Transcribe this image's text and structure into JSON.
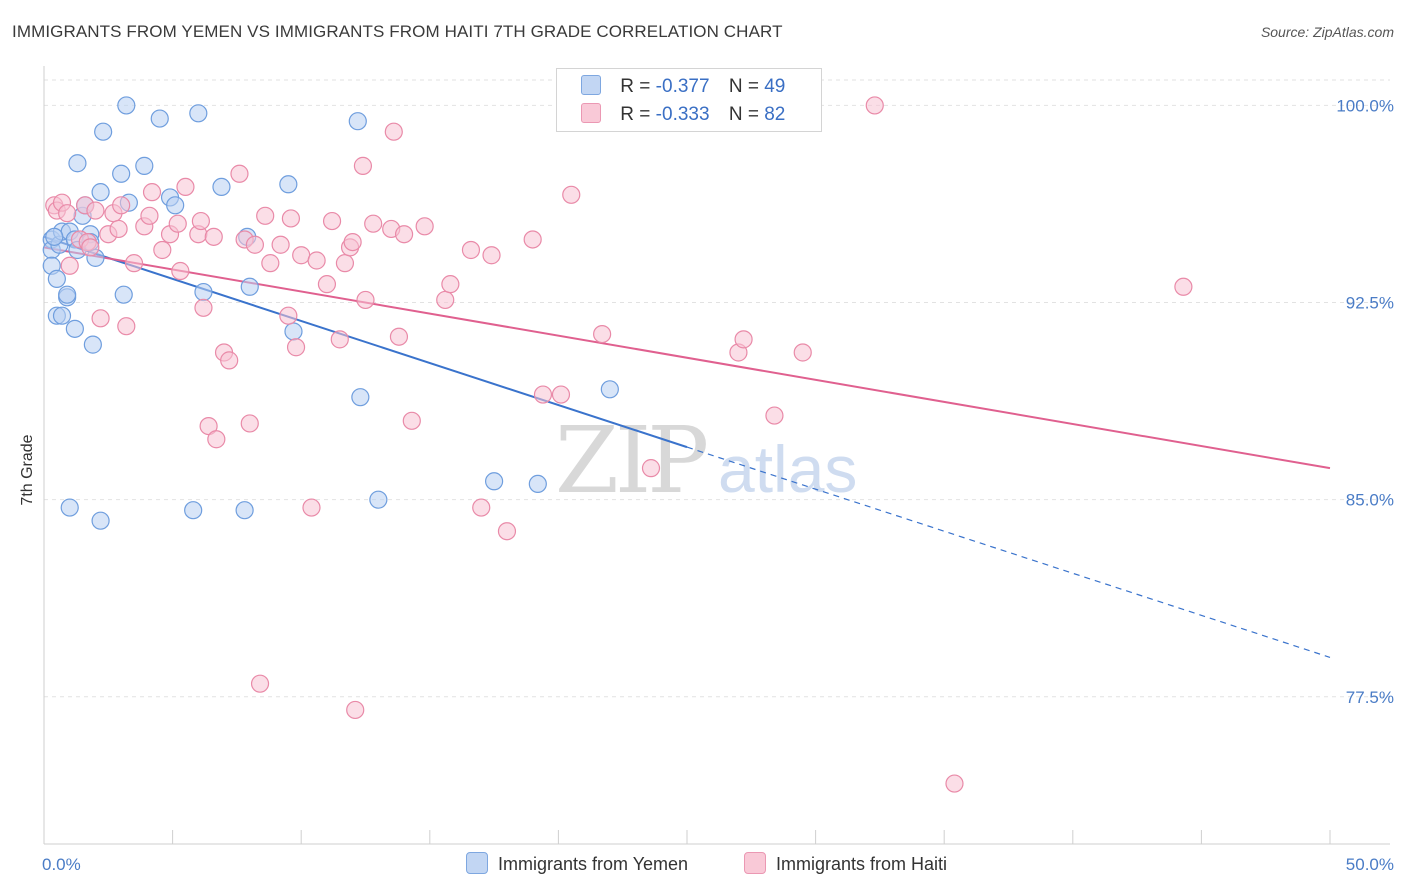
{
  "title": "IMMIGRANTS FROM YEMEN VS IMMIGRANTS FROM HAITI 7TH GRADE CORRELATION CHART",
  "source": "Source: ZipAtlas.com",
  "watermark": {
    "zip": "ZIP",
    "atlas": "atlas"
  },
  "legend": {
    "yemen": {
      "r_label": "R =",
      "r_value": "-0.377",
      "n_label": "N =",
      "n_value": "49"
    },
    "haiti": {
      "r_label": "R =",
      "r_value": "-0.333",
      "n_label": "N =",
      "n_value": "82"
    }
  },
  "bottom_legend": {
    "yemen": "Immigrants from Yemen",
    "haiti": "Immigrants from Haiti"
  },
  "colors": {
    "yemen_fill": "#b8d0f2",
    "yemen_stroke": "#6f9ede",
    "yemen_line": "#3a73cc",
    "haiti_fill": "#f7c2d3",
    "haiti_stroke": "#e98aa8",
    "haiti_line": "#e0608f"
  },
  "chart_data": {
    "type": "scatter",
    "title": "IMMIGRANTS FROM YEMEN VS IMMIGRANTS FROM HAITI 7TH GRADE CORRELATION CHART",
    "xlabel": "",
    "ylabel": "7th Grade",
    "xlim": [
      0,
      50
    ],
    "ylim": [
      71.9,
      101.5
    ],
    "x_tick_labels": [
      "0.0%",
      "50.0%"
    ],
    "y_ticks": [
      77.5,
      85.0,
      92.5,
      100.0
    ],
    "y_tick_labels": [
      "77.5%",
      "85.0%",
      "92.5%",
      "100.0%"
    ],
    "grid": true,
    "series": [
      {
        "name": "Immigrants from Yemen",
        "points": [
          [
            0.3,
            94.9
          ],
          [
            0.3,
            94.5
          ],
          [
            0.3,
            93.9
          ],
          [
            0.5,
            93.4
          ],
          [
            0.5,
            92.0
          ],
          [
            0.6,
            94.7
          ],
          [
            0.7,
            95.2
          ],
          [
            0.7,
            92.0
          ],
          [
            0.9,
            92.7
          ],
          [
            0.9,
            92.8
          ],
          [
            1.0,
            95.2
          ],
          [
            1.2,
            94.9
          ],
          [
            1.2,
            91.5
          ],
          [
            1.3,
            97.8
          ],
          [
            1.3,
            94.5
          ],
          [
            1.5,
            95.8
          ],
          [
            1.6,
            96.2
          ],
          [
            1.8,
            95.1
          ],
          [
            1.8,
            94.8
          ],
          [
            1.9,
            90.9
          ],
          [
            2.0,
            94.2
          ],
          [
            2.2,
            96.7
          ],
          [
            2.3,
            99.0
          ],
          [
            3.0,
            97.4
          ],
          [
            3.1,
            92.8
          ],
          [
            3.2,
            100.0
          ],
          [
            3.3,
            96.3
          ],
          [
            3.9,
            97.7
          ],
          [
            4.5,
            99.5
          ],
          [
            4.9,
            96.5
          ],
          [
            5.1,
            96.2
          ],
          [
            6.0,
            99.7
          ],
          [
            6.2,
            92.9
          ],
          [
            6.9,
            96.9
          ],
          [
            7.9,
            95.0
          ],
          [
            8.0,
            93.1
          ],
          [
            9.5,
            97.0
          ],
          [
            9.7,
            91.4
          ],
          [
            12.2,
            99.4
          ],
          [
            12.3,
            88.9
          ],
          [
            1.0,
            84.7
          ],
          [
            2.2,
            84.2
          ],
          [
            5.8,
            84.6
          ],
          [
            7.8,
            84.6
          ],
          [
            13.0,
            85.0
          ],
          [
            17.5,
            85.7
          ],
          [
            19.2,
            85.6
          ],
          [
            22.0,
            89.2
          ],
          [
            0.4,
            95.0
          ]
        ]
      },
      {
        "name": "Immigrants from Haiti",
        "points": [
          [
            0.4,
            96.2
          ],
          [
            0.5,
            96.0
          ],
          [
            0.7,
            96.3
          ],
          [
            0.9,
            95.9
          ],
          [
            1.0,
            93.9
          ],
          [
            1.4,
            94.9
          ],
          [
            1.6,
            96.2
          ],
          [
            1.7,
            94.8
          ],
          [
            2.0,
            96.0
          ],
          [
            2.2,
            91.9
          ],
          [
            2.5,
            95.1
          ],
          [
            2.7,
            95.9
          ],
          [
            2.9,
            95.3
          ],
          [
            3.0,
            96.2
          ],
          [
            3.2,
            91.6
          ],
          [
            3.5,
            94.0
          ],
          [
            3.9,
            95.4
          ],
          [
            4.1,
            95.8
          ],
          [
            4.2,
            96.7
          ],
          [
            4.6,
            94.5
          ],
          [
            4.9,
            95.1
          ],
          [
            5.2,
            95.5
          ],
          [
            5.3,
            93.7
          ],
          [
            5.5,
            96.9
          ],
          [
            6.0,
            95.1
          ],
          [
            6.1,
            95.6
          ],
          [
            6.2,
            92.3
          ],
          [
            6.4,
            87.8
          ],
          [
            6.6,
            95.0
          ],
          [
            6.7,
            87.3
          ],
          [
            7.0,
            90.6
          ],
          [
            7.2,
            90.3
          ],
          [
            7.6,
            97.4
          ],
          [
            7.8,
            94.9
          ],
          [
            8.0,
            87.9
          ],
          [
            8.2,
            94.7
          ],
          [
            8.4,
            78.0
          ],
          [
            8.6,
            95.8
          ],
          [
            8.8,
            94.0
          ],
          [
            9.2,
            94.7
          ],
          [
            9.5,
            92.0
          ],
          [
            9.6,
            95.7
          ],
          [
            9.8,
            90.8
          ],
          [
            10.0,
            94.3
          ],
          [
            10.4,
            84.7
          ],
          [
            10.6,
            94.1
          ],
          [
            11.0,
            93.2
          ],
          [
            11.2,
            95.6
          ],
          [
            11.5,
            91.1
          ],
          [
            11.7,
            94.0
          ],
          [
            11.9,
            94.6
          ],
          [
            12.0,
            94.8
          ],
          [
            12.1,
            77.0
          ],
          [
            12.4,
            97.7
          ],
          [
            12.5,
            92.6
          ],
          [
            12.8,
            95.5
          ],
          [
            13.5,
            95.3
          ],
          [
            13.6,
            99.0
          ],
          [
            13.8,
            91.2
          ],
          [
            14.0,
            95.1
          ],
          [
            14.3,
            88.0
          ],
          [
            14.8,
            95.4
          ],
          [
            15.6,
            92.6
          ],
          [
            15.8,
            93.2
          ],
          [
            16.6,
            94.5
          ],
          [
            17.0,
            84.7
          ],
          [
            17.4,
            94.3
          ],
          [
            18.0,
            83.8
          ],
          [
            19.0,
            94.9
          ],
          [
            19.4,
            89.0
          ],
          [
            20.1,
            89.0
          ],
          [
            20.5,
            96.6
          ],
          [
            21.7,
            91.3
          ],
          [
            23.6,
            86.2
          ],
          [
            27.0,
            90.6
          ],
          [
            27.2,
            91.1
          ],
          [
            28.4,
            88.2
          ],
          [
            29.5,
            90.6
          ],
          [
            32.3,
            100.0
          ],
          [
            35.4,
            74.2
          ],
          [
            44.3,
            93.1
          ],
          [
            1.8,
            94.6
          ]
        ]
      }
    ],
    "trend_lines": [
      {
        "series": "Immigrants from Yemen",
        "solid": [
          [
            0,
            95.0
          ],
          [
            25,
            87.0
          ]
        ],
        "dashed": [
          [
            25,
            87.0
          ],
          [
            50,
            79.0
          ]
        ]
      },
      {
        "series": "Immigrants from Haiti",
        "solid": [
          [
            0,
            94.6
          ],
          [
            50,
            86.2
          ]
        ]
      }
    ]
  }
}
